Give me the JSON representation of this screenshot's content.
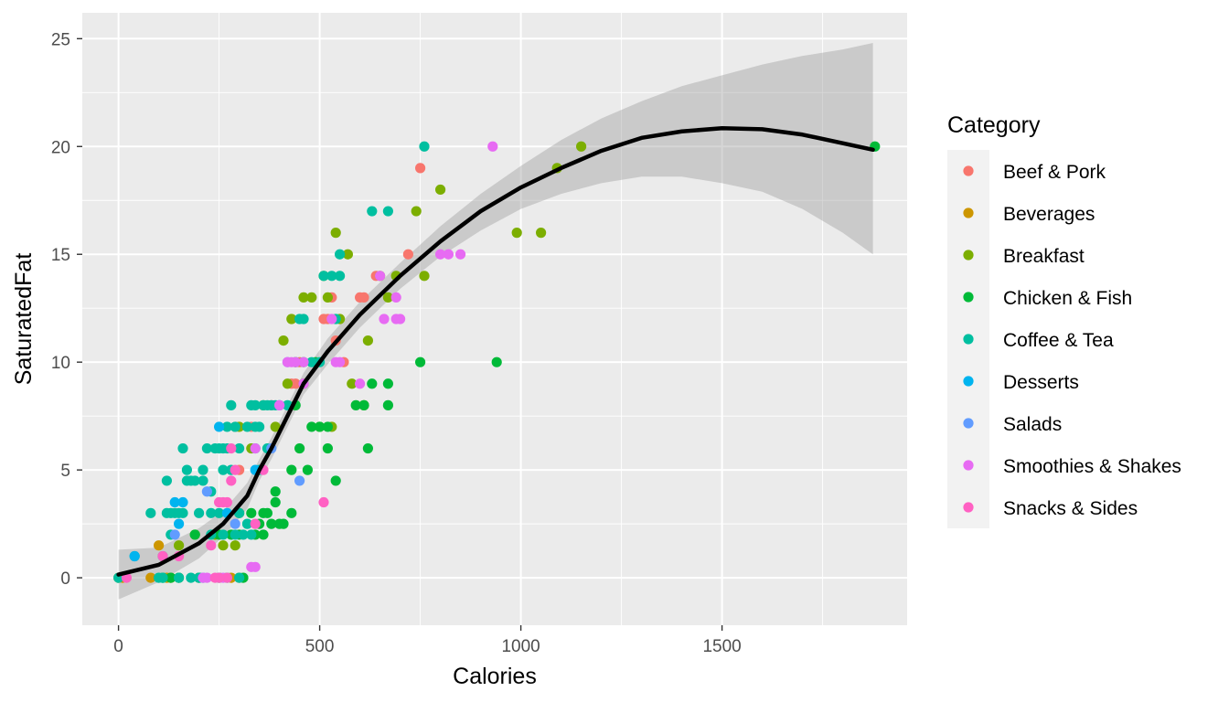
{
  "chart_data": {
    "type": "scatter",
    "title": "",
    "xlabel": "Calories",
    "ylabel": "SaturatedFat",
    "xlim": [
      -90,
      1960
    ],
    "ylim": [
      -2.2,
      26.2
    ],
    "x_ticks": [
      0,
      500,
      1000,
      1500
    ],
    "x_tick_labels": [
      "0",
      "500",
      "1000",
      "1500"
    ],
    "y_ticks": [
      0,
      5,
      10,
      15,
      20,
      25
    ],
    "y_tick_labels": [
      "0",
      "5",
      "10",
      "15",
      "20",
      "25"
    ],
    "grid": true,
    "legend_title": "Category",
    "legend_position": "right",
    "series": [
      {
        "name": "Beef & Pork",
        "color": "#F8766D",
        "points": [
          [
            440,
            9
          ],
          [
            450,
            10
          ],
          [
            520,
            12
          ],
          [
            530,
            13
          ],
          [
            540,
            11
          ],
          [
            610,
            13
          ],
          [
            720,
            15
          ],
          [
            750,
            19
          ],
          [
            300,
            5
          ],
          [
            380,
            8
          ],
          [
            430,
            9
          ],
          [
            510,
            12
          ],
          [
            600,
            13
          ],
          [
            640,
            14
          ],
          [
            330,
            7
          ],
          [
            560,
            10
          ],
          [
            290,
            7
          ]
        ]
      },
      {
        "name": "Beverages",
        "color": "#CD9600",
        "points": [
          [
            0,
            0
          ],
          [
            80,
            0
          ],
          [
            100,
            1.5
          ],
          [
            130,
            0
          ],
          [
            150,
            0
          ],
          [
            200,
            0
          ],
          [
            250,
            0
          ],
          [
            280,
            0
          ],
          [
            300,
            0
          ],
          [
            10,
            0
          ],
          [
            120,
            0
          ]
        ]
      },
      {
        "name": "Breakfast",
        "color": "#7CAE00",
        "points": [
          [
            150,
            1.5
          ],
          [
            190,
            2
          ],
          [
            260,
            1.5
          ],
          [
            290,
            1.5
          ],
          [
            300,
            7
          ],
          [
            330,
            6
          ],
          [
            390,
            7
          ],
          [
            410,
            11
          ],
          [
            430,
            12
          ],
          [
            460,
            13
          ],
          [
            480,
            13
          ],
          [
            510,
            14
          ],
          [
            520,
            13
          ],
          [
            530,
            7
          ],
          [
            540,
            16
          ],
          [
            570,
            15
          ],
          [
            580,
            9
          ],
          [
            610,
            8
          ],
          [
            620,
            11
          ],
          [
            650,
            14
          ],
          [
            670,
            13
          ],
          [
            690,
            14
          ],
          [
            740,
            17
          ],
          [
            760,
            14
          ],
          [
            800,
            18
          ],
          [
            990,
            16
          ],
          [
            1050,
            16
          ],
          [
            1090,
            19
          ],
          [
            1150,
            20
          ],
          [
            440,
            10
          ],
          [
            500,
            7
          ],
          [
            360,
            8
          ],
          [
            420,
            9
          ],
          [
            460,
            9
          ],
          [
            550,
            12
          ],
          [
            300,
            3
          ],
          [
            240,
            2
          ]
        ]
      },
      {
        "name": "Chicken & Fish",
        "color": "#00BA38",
        "points": [
          [
            110,
            0
          ],
          [
            130,
            0
          ],
          [
            150,
            0
          ],
          [
            190,
            2
          ],
          [
            200,
            0
          ],
          [
            250,
            2
          ],
          [
            280,
            2
          ],
          [
            300,
            2
          ],
          [
            310,
            0
          ],
          [
            340,
            2
          ],
          [
            350,
            2.5
          ],
          [
            360,
            2
          ],
          [
            370,
            3
          ],
          [
            380,
            2.5
          ],
          [
            390,
            3.5
          ],
          [
            400,
            2.5
          ],
          [
            390,
            4
          ],
          [
            430,
            5
          ],
          [
            450,
            6
          ],
          [
            470,
            5
          ],
          [
            480,
            7
          ],
          [
            500,
            7
          ],
          [
            520,
            6
          ],
          [
            520,
            7
          ],
          [
            540,
            4.5
          ],
          [
            590,
            8
          ],
          [
            610,
            8
          ],
          [
            620,
            6
          ],
          [
            630,
            9
          ],
          [
            670,
            8
          ],
          [
            670,
            9
          ],
          [
            750,
            10
          ],
          [
            940,
            10
          ],
          [
            1880,
            20
          ],
          [
            430,
            3
          ],
          [
            360,
            3
          ],
          [
            330,
            3
          ],
          [
            410,
            2.5
          ],
          [
            440,
            8
          ],
          [
            490,
            10
          ],
          [
            460,
            10
          ]
        ]
      },
      {
        "name": "Coffee & Tea",
        "color": "#00BFA0",
        "points": [
          [
            0,
            0
          ],
          [
            40,
            1
          ],
          [
            80,
            3
          ],
          [
            110,
            0
          ],
          [
            120,
            3
          ],
          [
            130,
            3
          ],
          [
            140,
            3
          ],
          [
            150,
            3
          ],
          [
            160,
            6
          ],
          [
            170,
            5
          ],
          [
            180,
            4.5
          ],
          [
            190,
            4.5
          ],
          [
            200,
            3
          ],
          [
            210,
            5
          ],
          [
            220,
            6
          ],
          [
            230,
            3
          ],
          [
            240,
            6
          ],
          [
            250,
            6
          ],
          [
            260,
            5
          ],
          [
            270,
            6
          ],
          [
            280,
            8
          ],
          [
            290,
            7
          ],
          [
            300,
            6
          ],
          [
            310,
            2
          ],
          [
            320,
            7
          ],
          [
            330,
            8
          ],
          [
            340,
            7
          ],
          [
            350,
            7
          ],
          [
            360,
            8
          ],
          [
            370,
            8
          ],
          [
            380,
            8
          ],
          [
            390,
            8
          ],
          [
            400,
            8
          ],
          [
            420,
            8
          ],
          [
            440,
            10
          ],
          [
            450,
            12
          ],
          [
            460,
            12
          ],
          [
            480,
            10
          ],
          [
            500,
            10
          ],
          [
            510,
            14
          ],
          [
            530,
            14
          ],
          [
            540,
            12
          ],
          [
            550,
            15
          ],
          [
            550,
            14
          ],
          [
            630,
            17
          ],
          [
            670,
            17
          ],
          [
            760,
            20
          ],
          [
            100,
            0
          ],
          [
            120,
            4.5
          ],
          [
            170,
            4.5
          ],
          [
            260,
            2
          ],
          [
            290,
            2
          ],
          [
            320,
            2.5
          ],
          [
            300,
            3
          ],
          [
            280,
            5
          ],
          [
            340,
            6
          ],
          [
            370,
            6
          ],
          [
            110,
            1
          ],
          [
            130,
            2
          ],
          [
            160,
            3
          ],
          [
            230,
            2
          ],
          [
            230,
            4
          ],
          [
            250,
            3
          ],
          [
            270,
            0
          ],
          [
            200,
            0
          ],
          [
            180,
            0
          ],
          [
            150,
            0
          ],
          [
            210,
            4.5
          ],
          [
            330,
            2
          ],
          [
            350,
            5
          ],
          [
            260,
            6
          ],
          [
            300,
            0
          ],
          [
            340,
            8
          ],
          [
            270,
            7
          ]
        ]
      },
      {
        "name": "Desserts",
        "color": "#00B4EF",
        "points": [
          [
            140,
            3.5
          ],
          [
            150,
            2.5
          ],
          [
            160,
            3.5
          ],
          [
            210,
            0
          ],
          [
            250,
            7
          ],
          [
            270,
            3
          ],
          [
            340,
            5
          ],
          [
            40,
            1
          ],
          [
            250,
            0
          ]
        ]
      },
      {
        "name": "Salads",
        "color": "#619CFF",
        "points": [
          [
            140,
            2
          ],
          [
            220,
            4
          ],
          [
            290,
            2.5
          ],
          [
            450,
            4.5
          ],
          [
            380,
            6
          ],
          [
            400,
            8
          ],
          [
            420,
            10
          ]
        ]
      },
      {
        "name": "Smoothies & Shakes",
        "color": "#E76BF3",
        "points": [
          [
            210,
            0
          ],
          [
            220,
            0
          ],
          [
            260,
            0
          ],
          [
            330,
            0.5
          ],
          [
            340,
            0.5
          ],
          [
            340,
            6
          ],
          [
            400,
            8
          ],
          [
            430,
            10
          ],
          [
            460,
            10
          ],
          [
            540,
            10
          ],
          [
            550,
            10
          ],
          [
            600,
            9
          ],
          [
            650,
            14
          ],
          [
            660,
            12
          ],
          [
            690,
            13
          ],
          [
            690,
            12
          ],
          [
            700,
            12
          ],
          [
            820,
            15
          ],
          [
            850,
            15
          ],
          [
            930,
            20
          ],
          [
            800,
            15
          ],
          [
            530,
            12
          ],
          [
            460,
            9
          ],
          [
            420,
            10
          ],
          [
            440,
            10
          ]
        ]
      },
      {
        "name": "Snacks & Sides",
        "color": "#FF61C3",
        "points": [
          [
            20,
            0
          ],
          [
            110,
            1
          ],
          [
            150,
            1
          ],
          [
            230,
            1.5
          ],
          [
            250,
            3.5
          ],
          [
            260,
            3.5
          ],
          [
            270,
            3.5
          ],
          [
            280,
            4.5
          ],
          [
            280,
            6
          ],
          [
            290,
            5
          ],
          [
            340,
            2.5
          ],
          [
            360,
            5
          ],
          [
            510,
            3.5
          ],
          [
            240,
            0
          ],
          [
            270,
            0
          ],
          [
            250,
            0
          ]
        ]
      }
    ],
    "smooth": {
      "type": "loess",
      "color": "#000000",
      "ci_fill": "#999999",
      "line": [
        [
          0,
          0.15
        ],
        [
          100,
          0.6
        ],
        [
          200,
          1.6
        ],
        [
          260,
          2.5
        ],
        [
          320,
          3.8
        ],
        [
          350,
          5
        ],
        [
          380,
          6
        ],
        [
          420,
          7.5
        ],
        [
          460,
          9
        ],
        [
          520,
          10.5
        ],
        [
          600,
          12.2
        ],
        [
          700,
          14
        ],
        [
          800,
          15.6
        ],
        [
          900,
          17
        ],
        [
          1000,
          18.1
        ],
        [
          1100,
          19
        ],
        [
          1200,
          19.8
        ],
        [
          1300,
          20.4
        ],
        [
          1400,
          20.7
        ],
        [
          1500,
          20.85
        ],
        [
          1600,
          20.8
        ],
        [
          1700,
          20.55
        ],
        [
          1800,
          20.15
        ],
        [
          1875,
          19.85
        ]
      ],
      "ci_upper": [
        [
          0,
          1.3
        ],
        [
          100,
          1.4
        ],
        [
          200,
          2.3
        ],
        [
          260,
          3.1
        ],
        [
          320,
          4.4
        ],
        [
          350,
          5.5
        ],
        [
          380,
          6.5
        ],
        [
          420,
          8
        ],
        [
          460,
          9.5
        ],
        [
          520,
          11.1
        ],
        [
          600,
          12.8
        ],
        [
          700,
          14.6
        ],
        [
          800,
          16.3
        ],
        [
          900,
          17.8
        ],
        [
          1000,
          19.1
        ],
        [
          1100,
          20.3
        ],
        [
          1200,
          21.3
        ],
        [
          1300,
          22.1
        ],
        [
          1400,
          22.8
        ],
        [
          1500,
          23.3
        ],
        [
          1600,
          23.8
        ],
        [
          1700,
          24.2
        ],
        [
          1800,
          24.5
        ],
        [
          1875,
          24.8
        ]
      ],
      "ci_lower": [
        [
          0,
          -1
        ],
        [
          100,
          -0.2
        ],
        [
          200,
          0.9
        ],
        [
          260,
          1.9
        ],
        [
          320,
          3.2
        ],
        [
          350,
          4.5
        ],
        [
          380,
          5.5
        ],
        [
          420,
          7
        ],
        [
          460,
          8.5
        ],
        [
          520,
          9.9
        ],
        [
          600,
          11.6
        ],
        [
          700,
          13.4
        ],
        [
          800,
          14.9
        ],
        [
          900,
          16.1
        ],
        [
          1000,
          17.1
        ],
        [
          1100,
          17.8
        ],
        [
          1200,
          18.3
        ],
        [
          1300,
          18.6
        ],
        [
          1400,
          18.6
        ],
        [
          1500,
          18.3
        ],
        [
          1600,
          17.9
        ],
        [
          1700,
          17.1
        ],
        [
          1800,
          16
        ],
        [
          1875,
          15
        ]
      ]
    }
  }
}
